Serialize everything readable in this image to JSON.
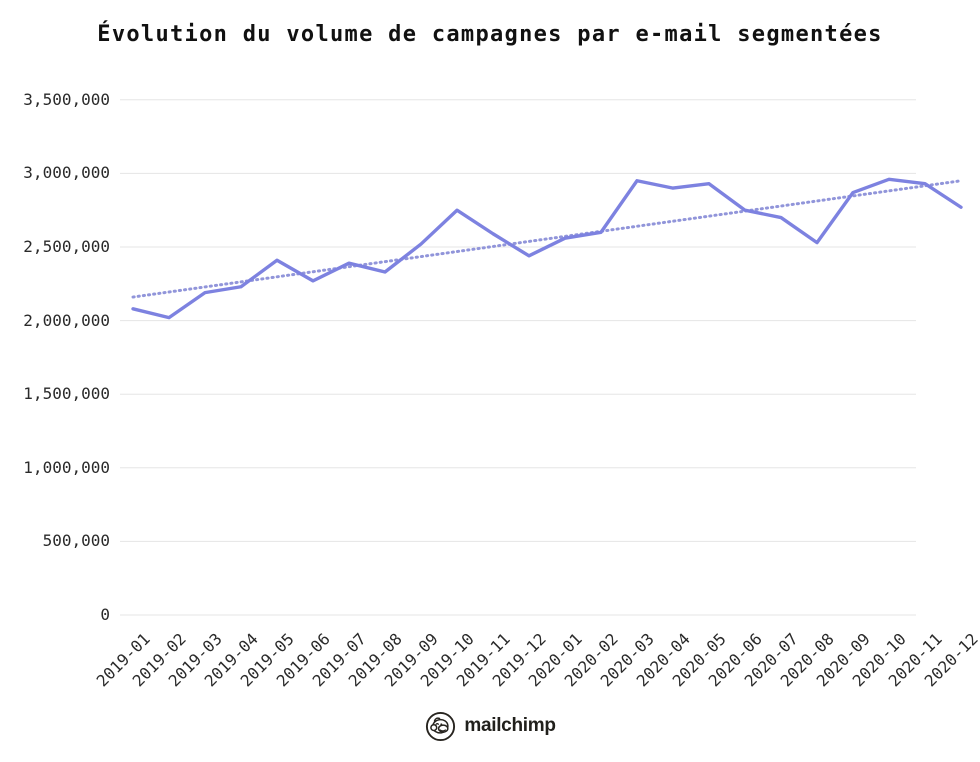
{
  "title": "Évolution du volume de campagnes par e-mail segmentées",
  "footer": {
    "brand": "mailchimp",
    "icon": "mailchimp-freddie-icon"
  },
  "colors": {
    "line": "#7d82e0",
    "trend": "#9195da",
    "grid": "#e5e5e5",
    "text": "#2a2a2a"
  },
  "chart_data": {
    "type": "line",
    "title": "Évolution du volume de campagnes par e-mail segmentées",
    "xlabel": "",
    "ylabel": "",
    "x": [
      "2019-01",
      "2019-02",
      "2019-03",
      "2019-04",
      "2019-05",
      "2019-06",
      "2019-07",
      "2019-08",
      "2019-09",
      "2019-10",
      "2019-11",
      "2019-12",
      "2020-01",
      "2020-02",
      "2020-03",
      "2020-04",
      "2020-05",
      "2020-06",
      "2020-07",
      "2020-08",
      "2020-09",
      "2020-10",
      "2020-11",
      "2020-12"
    ],
    "series": [
      {
        "name": "volume-campagnes-segmentees",
        "style": "solid",
        "color": "#7d82e0",
        "values": [
          2080000,
          2020000,
          2190000,
          2230000,
          2410000,
          2270000,
          2390000,
          2330000,
          2520000,
          2750000,
          2590000,
          2440000,
          2560000,
          2600000,
          2950000,
          2900000,
          2930000,
          2750000,
          2700000,
          2530000,
          2870000,
          2960000,
          2930000,
          2770000
        ]
      },
      {
        "name": "tendance-lineaire",
        "style": "dotted",
        "color": "#9195da",
        "trend_start": 2160000,
        "trend_end": 2950000
      }
    ],
    "ylim": [
      0,
      3500000
    ],
    "yticks": [
      0,
      500000,
      1000000,
      1500000,
      2000000,
      2500000,
      3000000,
      3500000
    ],
    "ytick_labels": [
      "0",
      "500,000",
      "1,000,000",
      "1,500,000",
      "2,000,000",
      "2,500,000",
      "3,000,000",
      "3,500,000"
    ],
    "grid": "horizontal",
    "legend": "none"
  }
}
